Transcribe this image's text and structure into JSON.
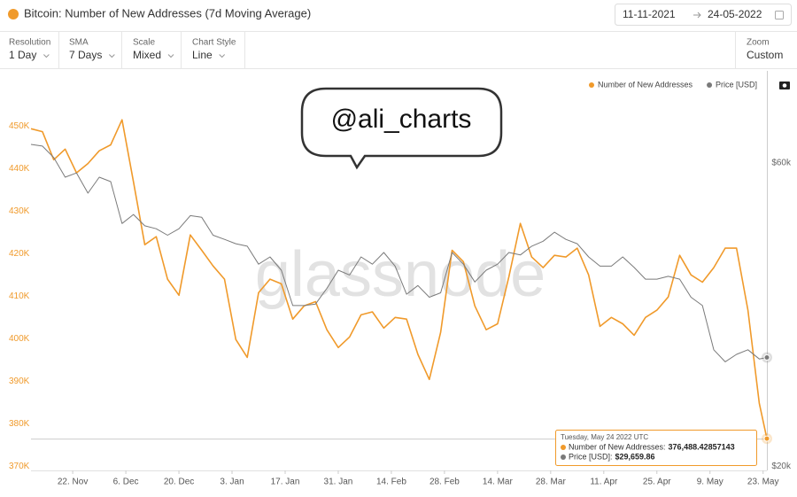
{
  "header": {
    "title": "Bitcoin: Number of New Addresses (7d Moving Average)",
    "date_from": "11-11-2021",
    "date_to": "24-05-2022"
  },
  "controls": [
    {
      "label": "Resolution",
      "value": "1 Day"
    },
    {
      "label": "SMA",
      "value": "7 Days"
    },
    {
      "label": "Scale",
      "value": "Mixed"
    },
    {
      "label": "Chart Style",
      "value": "Line"
    },
    {
      "label": "Zoom",
      "value": "Custom"
    }
  ],
  "annotation": "@ali_charts",
  "watermark": "glassnode",
  "tooltip": {
    "date": "Tuesday, May 24 2022 UTC",
    "items": [
      {
        "name": "Number of New Addresses:",
        "value": "376,488.42857143"
      },
      {
        "name": "Price [USD]:",
        "value": "$29,659.86"
      }
    ]
  },
  "chart_data": {
    "type": "line",
    "title": "Bitcoin: Number of New Addresses (7d Moving Average)",
    "x": [
      "2021-11-11",
      "2021-11-14",
      "2021-11-17",
      "2021-11-20",
      "2021-11-23",
      "2021-11-26",
      "2021-11-29",
      "2021-12-02",
      "2021-12-05",
      "2021-12-08",
      "2021-12-11",
      "2021-12-14",
      "2021-12-17",
      "2021-12-20",
      "2021-12-23",
      "2021-12-26",
      "2021-12-29",
      "2022-01-01",
      "2022-01-04",
      "2022-01-07",
      "2022-01-10",
      "2022-01-13",
      "2022-01-16",
      "2022-01-19",
      "2022-01-22",
      "2022-01-25",
      "2022-01-28",
      "2022-01-31",
      "2022-02-03",
      "2022-02-06",
      "2022-02-09",
      "2022-02-12",
      "2022-02-15",
      "2022-02-18",
      "2022-02-21",
      "2022-02-24",
      "2022-02-27",
      "2022-03-02",
      "2022-03-05",
      "2022-03-08",
      "2022-03-11",
      "2022-03-14",
      "2022-03-17",
      "2022-03-20",
      "2022-03-23",
      "2022-03-26",
      "2022-03-29",
      "2022-04-01",
      "2022-04-04",
      "2022-04-07",
      "2022-04-10",
      "2022-04-13",
      "2022-04-16",
      "2022-04-19",
      "2022-04-22",
      "2022-04-25",
      "2022-04-28",
      "2022-05-01",
      "2022-05-04",
      "2022-05-07",
      "2022-05-10",
      "2022-05-13",
      "2022-05-16",
      "2022-05-19",
      "2022-05-22",
      "2022-05-24"
    ],
    "xlim": [
      "2021-11-11",
      "2022-05-24"
    ],
    "xticks": [
      {
        "value": "2021-11-22",
        "label": "22. Nov"
      },
      {
        "value": "2021-12-06",
        "label": "6. Dec"
      },
      {
        "value": "2021-12-20",
        "label": "20. Dec"
      },
      {
        "value": "2022-01-03",
        "label": "3. Jan"
      },
      {
        "value": "2022-01-17",
        "label": "17. Jan"
      },
      {
        "value": "2022-01-31",
        "label": "31. Jan"
      },
      {
        "value": "2022-02-14",
        "label": "14. Feb"
      },
      {
        "value": "2022-02-28",
        "label": "28. Feb"
      },
      {
        "value": "2022-03-14",
        "label": "14. Mar"
      },
      {
        "value": "2022-03-28",
        "label": "28. Mar"
      },
      {
        "value": "2022-04-11",
        "label": "11. Apr"
      },
      {
        "value": "2022-04-25",
        "label": "25. Apr"
      },
      {
        "value": "2022-05-09",
        "label": "9. May"
      },
      {
        "value": "2022-05-23",
        "label": "23. May"
      }
    ],
    "ylim": [
      369000,
      463000
    ],
    "yticks": [
      {
        "value": 370000,
        "label": "370K"
      },
      {
        "value": 380000,
        "label": "380K"
      },
      {
        "value": 390000,
        "label": "390K"
      },
      {
        "value": 400000,
        "label": "400K"
      },
      {
        "value": 410000,
        "label": "410K"
      },
      {
        "value": 420000,
        "label": "420K"
      },
      {
        "value": 430000,
        "label": "430K"
      },
      {
        "value": 440000,
        "label": "440K"
      },
      {
        "value": 450000,
        "label": "450K"
      }
    ],
    "y2lim": [
      19700,
      83800
    ],
    "y2log": true,
    "y2ticks": [
      {
        "value": 20000,
        "label": "$20k"
      },
      {
        "value": 60000,
        "label": "$60k"
      }
    ],
    "grid": false,
    "legend": "top-right",
    "series": [
      {
        "name": "Number of New Addresses",
        "color": "#f09a2b",
        "axis": "y",
        "values": [
          449400,
          448700,
          442100,
          444600,
          439000,
          441200,
          444200,
          445600,
          451500,
          436900,
          422100,
          424000,
          414000,
          410200,
          424400,
          420800,
          417100,
          414000,
          399800,
          395600,
          410800,
          414000,
          412900,
          404600,
          407700,
          408700,
          402100,
          397900,
          400400,
          405600,
          406300,
          402500,
          405000,
          404600,
          396300,
          390400,
          401500,
          420800,
          418100,
          407700,
          402100,
          403500,
          414600,
          427100,
          419200,
          416700,
          419600,
          419200,
          421300,
          415000,
          402900,
          405000,
          403500,
          400800,
          405000,
          406700,
          409800,
          419600,
          415000,
          413300,
          416700,
          421300,
          421300,
          406700,
          384800,
          376488.42857143
        ]
      },
      {
        "name": "Price [USD]",
        "color": "#7a7a7a",
        "axis": "y2",
        "values": [
          64200,
          63800,
          61200,
          57000,
          57900,
          53800,
          57000,
          56100,
          48200,
          49800,
          47800,
          47300,
          46200,
          47300,
          49600,
          49300,
          46200,
          45500,
          44800,
          44400,
          41600,
          42700,
          40700,
          35800,
          35800,
          36000,
          38100,
          40700,
          40000,
          42700,
          41600,
          43400,
          41300,
          37300,
          38500,
          36900,
          37500,
          43400,
          41600,
          39000,
          40700,
          41600,
          43400,
          43000,
          44400,
          45200,
          46700,
          45500,
          44800,
          42700,
          41300,
          41300,
          42700,
          41100,
          39400,
          39400,
          39800,
          39400,
          36900,
          35800,
          30500,
          29200,
          30000,
          30500,
          29500,
          29659.86
        ]
      }
    ]
  }
}
